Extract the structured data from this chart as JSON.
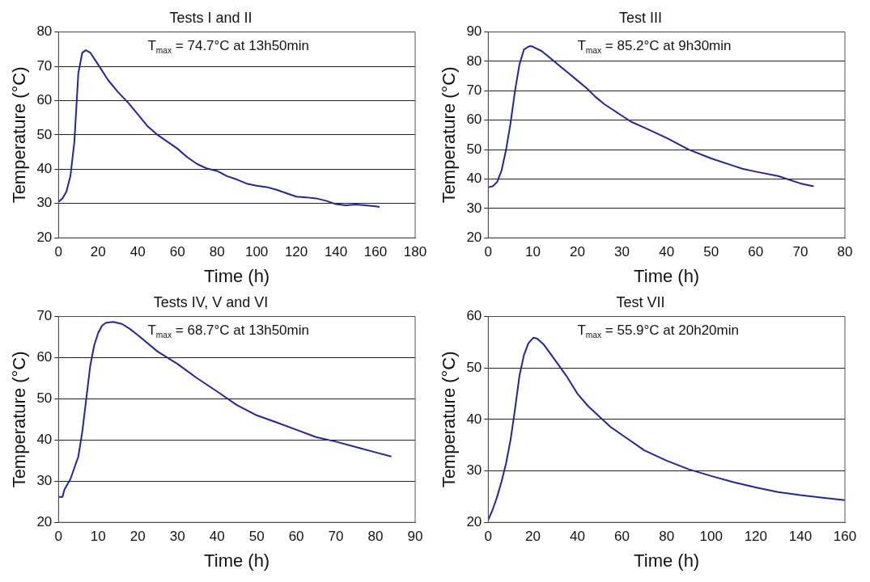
{
  "chart_data": [
    {
      "type": "line",
      "title": "Tests I and II",
      "xlabel": "Time (h)",
      "ylabel": "Temperature (°C)",
      "annotations": [
        "T$_{max}$ = 74.7°C at 13h50min"
      ],
      "xlim": [
        0,
        180
      ],
      "ylim": [
        20,
        80
      ],
      "xticks": [
        0,
        20,
        40,
        60,
        80,
        100,
        120,
        140,
        160,
        180
      ],
      "yticks": [
        20,
        30,
        40,
        50,
        60,
        70,
        80
      ],
      "grid": "y",
      "legend": false,
      "marker": "none",
      "line_style": "solid",
      "series": [
        {
          "color": "#2323a8",
          "x": [
            0,
            2,
            4,
            6,
            8,
            10,
            12,
            13.8,
            16,
            20,
            25,
            30,
            35,
            40,
            45,
            50,
            55,
            60,
            65,
            70,
            75,
            80,
            85,
            90,
            95,
            100,
            105,
            110,
            115,
            120,
            125,
            130,
            135,
            140,
            145,
            150,
            155,
            160,
            162
          ],
          "values": [
            30.5,
            31.5,
            33.5,
            38,
            48,
            68,
            74,
            74.7,
            74,
            70.5,
            66,
            62.5,
            59.5,
            56,
            52.5,
            50,
            48,
            46,
            43.5,
            41.5,
            40.2,
            39.5,
            38,
            37,
            35.8,
            35.2,
            34.8,
            34,
            33,
            32,
            31.8,
            31.5,
            30.8,
            29.8,
            29.5,
            29.7,
            29.5,
            29.2,
            29
          ]
        }
      ]
    },
    {
      "type": "line",
      "title": "Test III",
      "xlabel": "Time (h)",
      "ylabel": "Temperature (°C)",
      "annotations": [
        "T$_{max}$ = 85.2°C at 9h30min"
      ],
      "xlim": [
        0,
        80
      ],
      "ylim": [
        20,
        90
      ],
      "xticks": [
        0,
        10,
        20,
        30,
        40,
        50,
        60,
        70,
        80
      ],
      "yticks": [
        20,
        30,
        40,
        50,
        60,
        70,
        80,
        90
      ],
      "grid": "y",
      "legend": false,
      "marker": "none",
      "line_style": "solid",
      "series": [
        {
          "color": "#2323a8",
          "x": [
            0,
            1,
            2,
            3,
            4,
            5,
            6,
            7,
            8,
            9,
            9.5,
            10,
            12,
            14,
            16,
            18,
            20,
            22,
            24,
            26,
            28,
            30,
            32,
            35,
            40,
            45,
            50,
            55,
            57,
            60,
            65,
            70,
            73
          ],
          "values": [
            37.2,
            37.5,
            39,
            43,
            50,
            59,
            70,
            79,
            84,
            85,
            85.2,
            85,
            83.5,
            81,
            78.5,
            76,
            73.5,
            71,
            68,
            65.5,
            63.5,
            61.5,
            59.5,
            57.5,
            54,
            50,
            47,
            44.5,
            43.5,
            42.5,
            41,
            38.5,
            37.5
          ]
        }
      ]
    },
    {
      "type": "line",
      "title": "Tests IV, V and VI",
      "xlabel": "Time (h)",
      "ylabel": "Temperature (°C)",
      "annotations": [
        "T$_{max}$ = 68.7°C at 13h50min"
      ],
      "xlim": [
        0,
        90
      ],
      "ylim": [
        20,
        70
      ],
      "xticks": [
        0,
        10,
        20,
        30,
        40,
        50,
        60,
        70,
        80,
        90
      ],
      "yticks": [
        20,
        30,
        40,
        50,
        60,
        70
      ],
      "grid": "y",
      "legend": false,
      "marker": "none",
      "line_style": "solid",
      "series": [
        {
          "color": "#2323a8",
          "x": [
            0,
            1,
            1.5,
            3,
            5,
            6,
            7,
            8,
            9,
            10,
            11,
            12,
            13.8,
            16,
            18,
            20,
            25,
            30,
            35,
            40,
            45,
            50,
            55,
            60,
            65,
            70,
            75,
            80,
            84
          ],
          "values": [
            26.2,
            26.2,
            28,
            30.5,
            36,
            42,
            50,
            58,
            63,
            66,
            67.8,
            68.5,
            68.7,
            68.2,
            67,
            65.5,
            61.5,
            58.5,
            55,
            51.8,
            48.5,
            46,
            44.3,
            42.5,
            40.7,
            39.6,
            38.3,
            37,
            36
          ]
        }
      ]
    },
    {
      "type": "line",
      "title": "Test VII",
      "xlabel": "Time (h)",
      "ylabel": "Temperature (°C)",
      "annotations": [
        "T$_{max}$ = 55.9°C at 20h20min"
      ],
      "xlim": [
        0,
        160
      ],
      "ylim": [
        20,
        60
      ],
      "xticks": [
        0,
        20,
        40,
        60,
        80,
        100,
        120,
        140,
        160
      ],
      "yticks": [
        20,
        30,
        40,
        50,
        60
      ],
      "grid": "y",
      "legend": false,
      "marker": "none",
      "line_style": "solid",
      "series": [
        {
          "color": "#2323a8",
          "x": [
            0,
            2,
            4,
            6,
            8,
            10,
            12,
            14,
            16,
            18,
            20.3,
            22,
            25,
            30,
            35,
            40,
            45,
            50,
            55,
            60,
            70,
            80,
            90,
            100,
            110,
            120,
            130,
            140,
            150,
            160
          ],
          "values": [
            20.5,
            22.5,
            25,
            28,
            31.5,
            36,
            42,
            48.5,
            52.5,
            54.8,
            55.9,
            55.7,
            54.5,
            51.5,
            48.5,
            45,
            42.5,
            40.5,
            38.5,
            37,
            34,
            32,
            30.3,
            29,
            27.8,
            26.8,
            25.9,
            25.3,
            24.8,
            24.3
          ]
        }
      ]
    }
  ]
}
